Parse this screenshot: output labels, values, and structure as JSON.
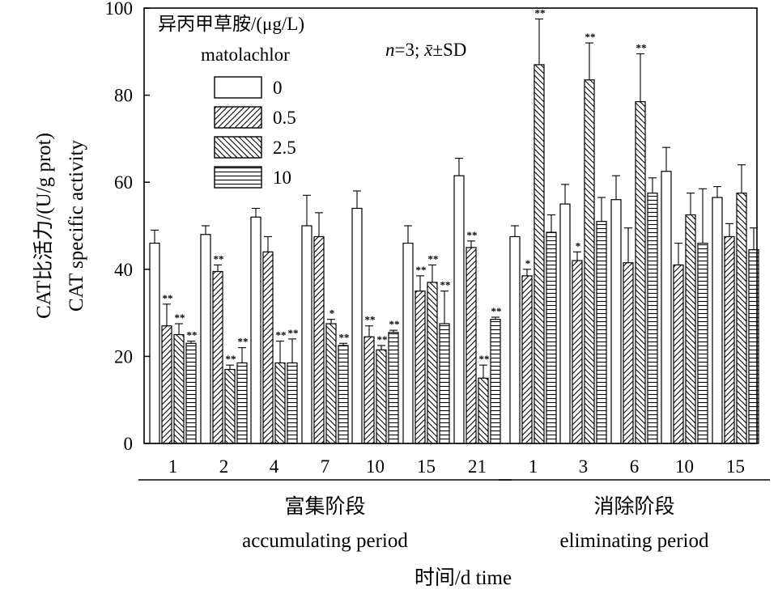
{
  "chart_data": {
    "type": "bar",
    "ylabel_cn": "CAT比活力/(U/g prot)",
    "ylabel_en": "CAT specific activity",
    "xlabel": "时间/d time",
    "ylim": [
      0,
      100
    ],
    "yticks": [
      0,
      20,
      40,
      60,
      80,
      100
    ],
    "legend_title_cn": "异丙甲草胺/(μg/L)",
    "legend_title_en": "matolachlor",
    "stat_note_n": "n",
    "stat_note_eq": "=3; ",
    "stat_note_x": "x̄",
    "stat_note_sd": "±SD",
    "legend_position": "top-left",
    "categories": [
      "1",
      "2",
      "4",
      "7",
      "10",
      "15",
      "21",
      "1",
      "3",
      "6",
      "10",
      "15"
    ],
    "periods": [
      {
        "name_cn": "富集阶段",
        "name_en": "accumulating period",
        "start": 0,
        "end": 6
      },
      {
        "name_cn": "消除阶段",
        "name_en": "eliminating period",
        "start": 7,
        "end": 11
      }
    ],
    "series": [
      {
        "name": "0",
        "pattern": "none",
        "values": [
          46,
          48,
          52,
          50,
          54,
          46,
          61.5,
          47.5,
          55,
          56,
          62.5,
          56.5
        ],
        "errors": [
          3,
          2,
          2,
          7,
          4,
          4,
          4,
          2.5,
          4.5,
          5.5,
          5.5,
          2.5
        ],
        "sig": [
          "",
          "",
          "",
          "",
          "",
          "",
          "",
          "",
          "",
          "",
          "",
          ""
        ]
      },
      {
        "name": "0.5",
        "pattern": "diag-right",
        "values": [
          27,
          39.5,
          44,
          47.5,
          24.5,
          35,
          45,
          38.5,
          42,
          41.5,
          41,
          47.5
        ],
        "errors": [
          5,
          1.5,
          3.5,
          5.5,
          2.5,
          3.5,
          1.5,
          1.5,
          2,
          8,
          5,
          3
        ],
        "sig": [
          "**",
          "**",
          "",
          "",
          "**",
          "**",
          "**",
          "*",
          "*",
          "",
          "",
          ""
        ]
      },
      {
        "name": "2.5",
        "pattern": "diag-left",
        "values": [
          25,
          17,
          18.5,
          27.5,
          21.5,
          37,
          15,
          87,
          83.5,
          78.5,
          52.5,
          57.5
        ],
        "errors": [
          2.5,
          1,
          5,
          1,
          1,
          4,
          3,
          10.5,
          8.5,
          11,
          5,
          6.5
        ],
        "sig": [
          "**",
          "**",
          "**",
          "*",
          "**",
          "**",
          "**",
          "**",
          "**",
          "**",
          "",
          ""
        ]
      },
      {
        "name": "10",
        "pattern": "horizontal",
        "values": [
          23,
          18.5,
          18.5,
          22.5,
          25.5,
          27.5,
          28.5,
          48.5,
          51,
          57.5,
          46,
          44.5
        ],
        "errors": [
          0.5,
          3.5,
          5.5,
          0.5,
          0.5,
          7.5,
          0.5,
          4,
          5.5,
          3.5,
          12.5,
          5
        ],
        "sig": [
          "**",
          "**",
          "**",
          "**",
          "**",
          "**",
          "**",
          "",
          "",
          "",
          "",
          ""
        ]
      }
    ]
  }
}
